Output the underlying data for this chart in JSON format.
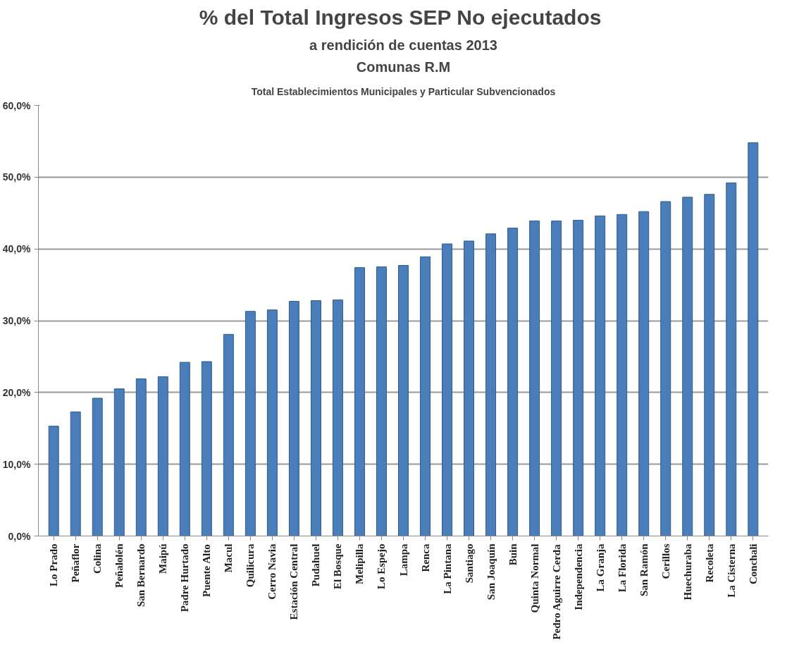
{
  "chart_data": {
    "type": "bar",
    "title": "% del Total Ingresos SEP  No ejecutados",
    "subtitle": "a rendición de cuentas 2013",
    "annotations": [
      "Comunas R.M",
      "Total Establecimientos Municipales y Particular Subvencionados"
    ],
    "categories": [
      "Lo Prado",
      "Peñaflor",
      "Colina",
      "Peñalolén",
      "San Bernardo",
      "Maipú",
      "Padre Hurtado",
      "Puente Alto",
      "Macul",
      "Quilicura",
      "Cerro Navia",
      "Estación Central",
      "Pudahuel",
      "El Bosque",
      "Melipilla",
      "Lo Espejo",
      "Lampa",
      "Renca",
      "La Pintana",
      "Santiago",
      "San Joaquín",
      "Buin",
      "Quinta Normal",
      "Pedro Aguirre Cerda",
      "Independencia",
      "La Granja",
      "La Florida",
      "San Ramón",
      "Cerillos",
      "Huechuraba",
      "Recoleta",
      "La Cisterna",
      "Conchali"
    ],
    "values": [
      15.3,
      17.3,
      19.2,
      20.5,
      21.9,
      22.2,
      24.2,
      24.3,
      28.1,
      31.3,
      31.5,
      32.7,
      32.8,
      32.9,
      37.4,
      37.5,
      37.7,
      38.9,
      40.7,
      41.1,
      42.1,
      42.9,
      43.9,
      43.9,
      44.0,
      44.6,
      44.8,
      45.2,
      46.6,
      47.2,
      47.6,
      49.2,
      54.8
    ],
    "color": "#4a7ebb",
    "ylim": [
      0,
      60
    ],
    "yticks": [
      {
        "value": 0,
        "label": "0,0%"
      },
      {
        "value": 10,
        "label": "10,0%"
      },
      {
        "value": 20,
        "label": "20,0%"
      },
      {
        "value": 30,
        "label": "30,0%"
      },
      {
        "value": 40,
        "label": "40,0%"
      },
      {
        "value": 50,
        "label": "50,0%"
      },
      {
        "value": 60,
        "label": "60,0%"
      }
    ],
    "grid": "y"
  }
}
